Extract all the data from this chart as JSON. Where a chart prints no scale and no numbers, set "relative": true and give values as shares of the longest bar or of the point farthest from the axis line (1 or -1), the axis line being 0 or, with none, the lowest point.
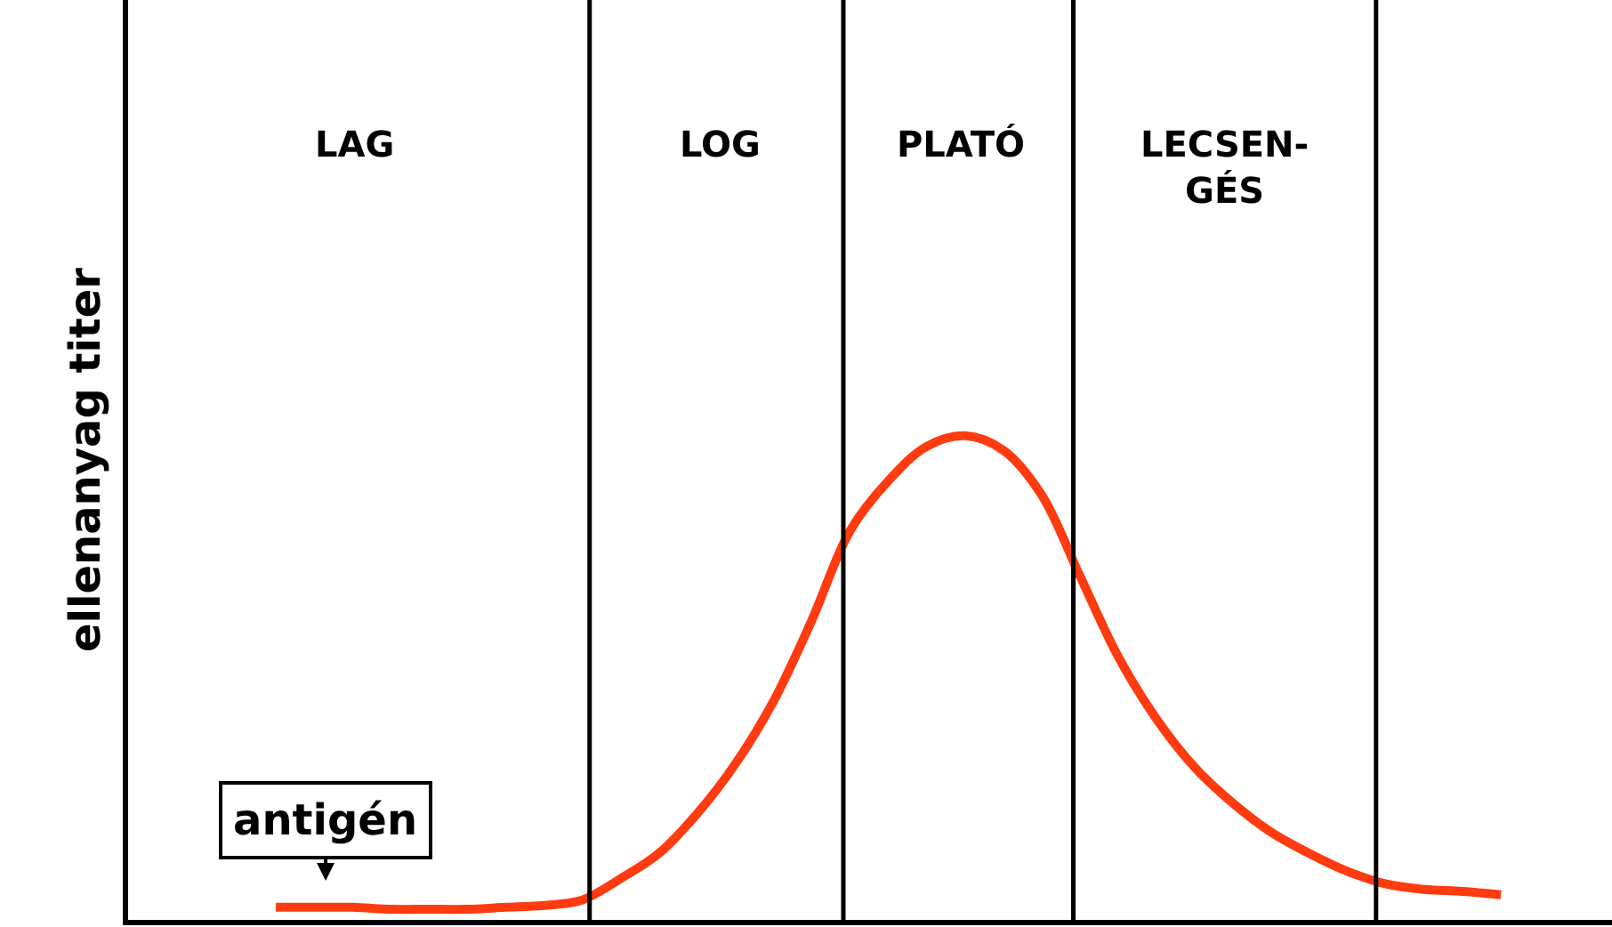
{
  "chart_data": {
    "type": "line",
    "relative": true,
    "ylabel": "ellenanyag titer",
    "categories": [
      null,
      null,
      null,
      null,
      null,
      null,
      null,
      null,
      null,
      null,
      null,
      null,
      null,
      null,
      null,
      null,
      null,
      null,
      null,
      null,
      null,
      null,
      null,
      null,
      null,
      null,
      null,
      null,
      null,
      null,
      null,
      null,
      null
    ],
    "series": [
      {
        "color": "#ff3b0f",
        "values": [
          0.026,
          0.026,
          0.026,
          0.022,
          0.022,
          0.022,
          0.026,
          0.03,
          0.041,
          0.085,
          0.137,
          0.219,
          0.322,
          0.452,
          0.619,
          0.804,
          0.907,
          0.978,
          1,
          0.97,
          0.878,
          0.711,
          0.544,
          0.415,
          0.315,
          0.241,
          0.181,
          0.137,
          0.1,
          0.074,
          0.063,
          0.059,
          0.052
        ]
      }
    ],
    "annotations": [
      "antigén",
      "LAG",
      "LOG",
      "PLATÓ",
      "LECSEN-\nGÉS"
    ],
    "marker": "none",
    "line_style": "solid"
  }
}
